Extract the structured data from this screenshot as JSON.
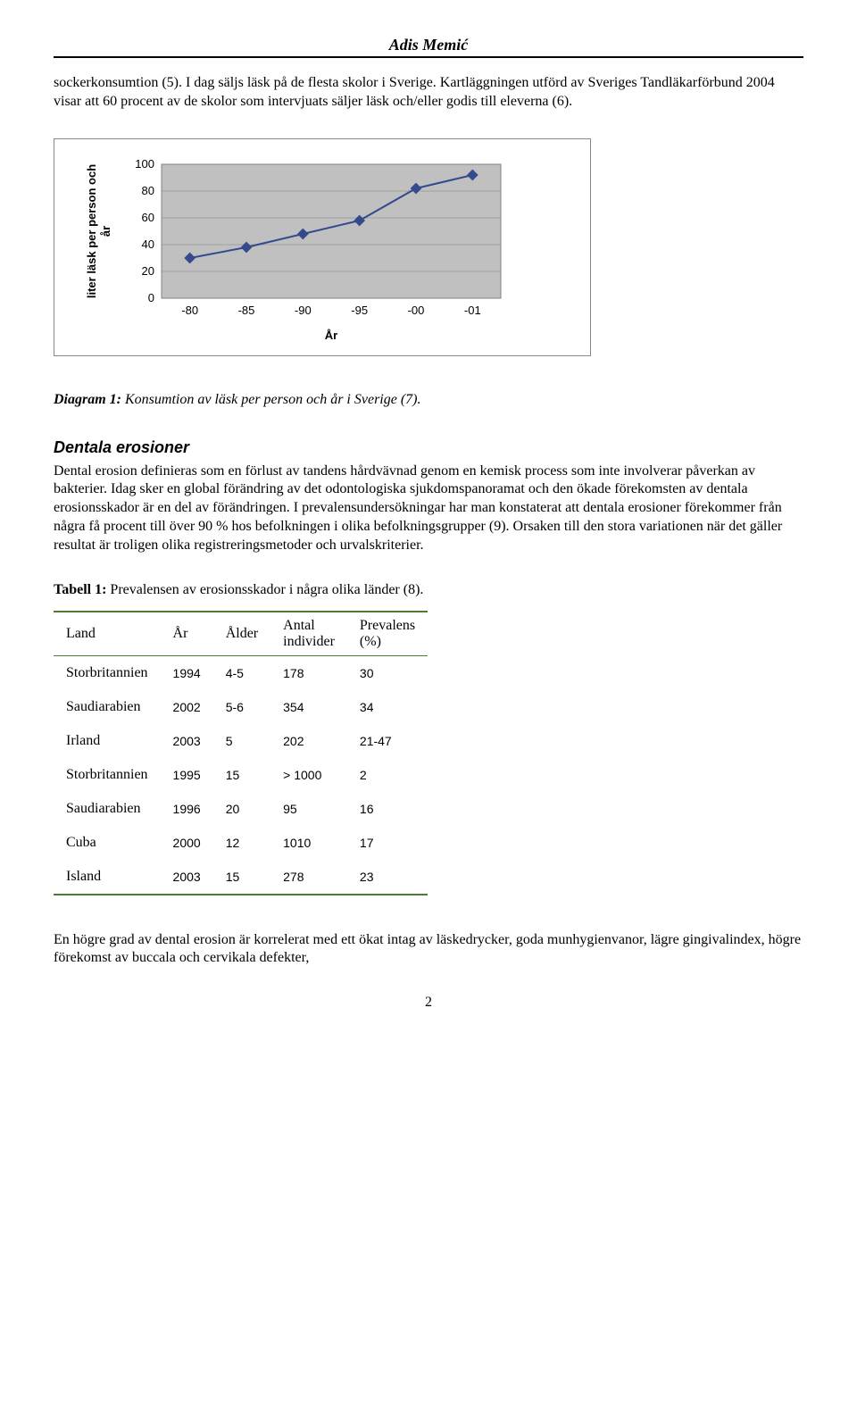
{
  "header": {
    "author": "Adis Memić"
  },
  "paragraphs": {
    "intro": "sockerkonsumtion (5). I dag säljs läsk på de flesta skolor i Sverige. Kartläggningen utförd av Sveriges Tandläkarförbund 2004 visar att 60 procent av de skolor som intervjuats säljer läsk och/eller godis till eleverna (6).",
    "diagram_caption_prefix": "Diagram 1:",
    "diagram_caption_rest": " Konsumtion av läsk per person och år i Sverige (7).",
    "section_title": "Dentala erosioner",
    "section_body": "Dental erosion definieras som en förlust av tandens hårdvävnad genom en kemisk process som inte involverar påverkan av bakterier. Idag sker en global förändring av det odontologiska sjukdomspanoramat och den ökade förekomsten av dentala erosionsskador är en del av förändringen. I prevalensundersökningar har man konstaterat att dentala erosioner förekommer från några få procent till över 90 % hos befolkningen i olika befolkningsgrupper (9). Orsaken till den stora variationen när det gäller resultat är troligen olika registreringsmetoder och urvalskriterier.",
    "table_caption_prefix": "Tabell 1: ",
    "table_caption_rest": "Prevalensen av erosionsskador i några olika länder (8).",
    "closing": "En högre grad av dental erosion är korrelerat med ett ökat intag av läskedrycker, goda munhygienvanor, lägre gingivalindex, högre förekomst av buccala och cervikala defekter,"
  },
  "chart": {
    "type": "line-scatter",
    "y_label": "liter läsk per person och\når",
    "x_label": "År",
    "x_ticks": [
      "-80",
      "-85",
      "-90",
      "-95",
      "-00",
      "-01"
    ],
    "y_ticks": [
      0,
      20,
      40,
      60,
      80,
      100
    ],
    "values": [
      30,
      38,
      48,
      58,
      82,
      92
    ],
    "plot_bg": "#c0c0c0",
    "grid_color": "#808080",
    "line_color": "#344a8e",
    "marker_color": "#344a8e",
    "axis_color": "#808080",
    "outer_border": "#888888",
    "ylim": [
      0,
      100
    ],
    "label_fontsize": 13,
    "tick_fontsize": 13,
    "font_family": "Arial, Helvetica, sans-serif"
  },
  "table": {
    "header": {
      "c0": "Land",
      "c1": "År",
      "c2": "Ålder",
      "c3_line1": "Antal",
      "c3_line2": "individer",
      "c4_line1": "Prevalens",
      "c4_line2": "(%)"
    },
    "rows": [
      {
        "c0": "Storbritannien",
        "c1": "1994",
        "c2": "4-5",
        "c3": "178",
        "c4": "30"
      },
      {
        "c0": "Saudiarabien",
        "c1": "2002",
        "c2": "5-6",
        "c3": "354",
        "c4": "34"
      },
      {
        "c0": "Irland",
        "c1": "2003",
        "c2": "5",
        "c3": "202",
        "c4": "21-47"
      },
      {
        "c0": "Storbritannien",
        "c1": "1995",
        "c2": "15",
        "c3": "> 1000",
        "c4": "2"
      },
      {
        "c0": "Saudiarabien",
        "c1": "1996",
        "c2": "20",
        "c3": "95",
        "c4": "16"
      },
      {
        "c0": "Cuba",
        "c1": "2000",
        "c2": "12",
        "c3": "1010",
        "c4": "17"
      },
      {
        "c0": "Island",
        "c1": "2003",
        "c2": "15",
        "c3": "278",
        "c4": "23"
      }
    ],
    "rule_color": "#4e7b33"
  },
  "footer": {
    "page": "2"
  }
}
